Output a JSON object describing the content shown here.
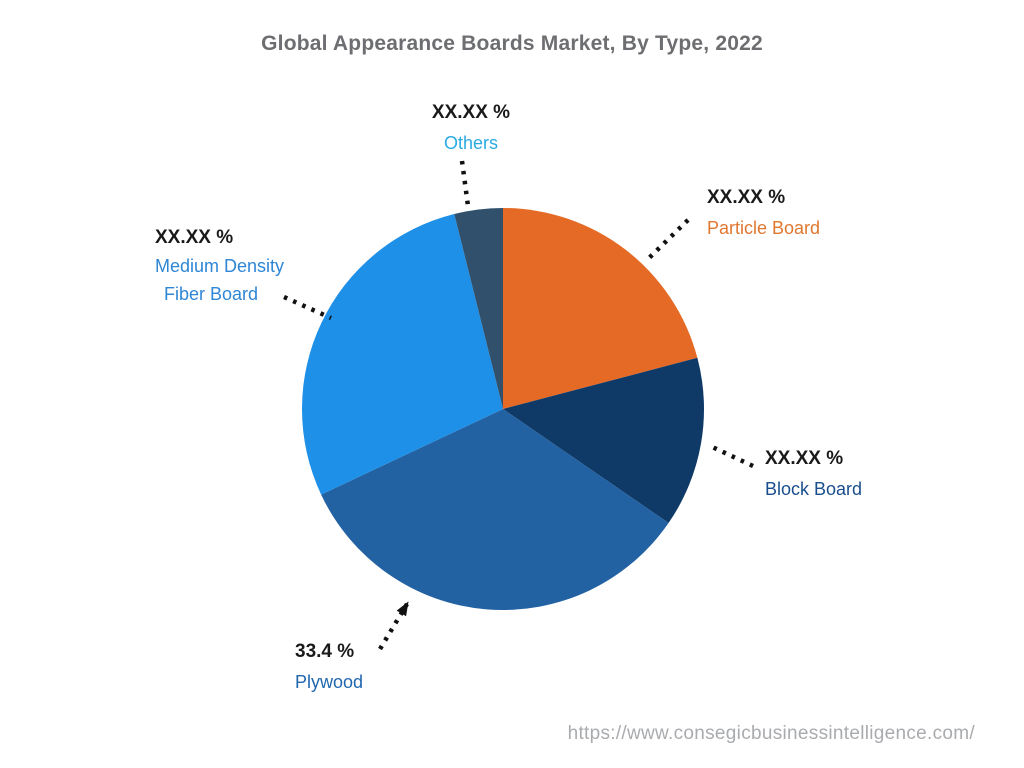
{
  "title": "Global Appearance Boards Market, By Type, 2022",
  "footer_url": "https://www.consegicbusinessintelligence.com/",
  "chart_data": {
    "type": "pie",
    "title": "Global Appearance Boards Market, By Type, 2022",
    "start_angle": "top",
    "direction": "clockwise",
    "note": "Only Plywood shows a numeric share (33.4 %); other slices are masked as XX.XX % in the image. value_pct for masked slices estimated from slice angles.",
    "slices": [
      {
        "label": "Particle Board",
        "display_value": "XX.XX %",
        "value_pct": 20.9,
        "color": "#E56A25",
        "label_color": "#E0772F"
      },
      {
        "label": "Block Board",
        "display_value": "XX.XX %",
        "value_pct": 13.7,
        "color": "#0F3A68",
        "label_color": "#1A4E8D"
      },
      {
        "label": "Plywood",
        "display_value": "33.4 %",
        "value_pct": 33.4,
        "color": "#2262A3",
        "label_color": "#2067AF"
      },
      {
        "label": "Medium Density Fiber Board",
        "display_value": "XX.XX %",
        "value_pct": 28.1,
        "color": "#1E90E8",
        "label_color": "#2E86D5"
      },
      {
        "label": "Others",
        "display_value": "XX.XX %",
        "value_pct": 3.9,
        "color": "#30506C",
        "label_color": "#29ABE2"
      }
    ]
  },
  "callouts": {
    "others": {
      "value": "XX.XX %",
      "label": "Others"
    },
    "particle_board": {
      "value": "XX.XX %",
      "label": "Particle Board"
    },
    "medium_density_fiber_board": {
      "value": "XX.XX %",
      "label_line1": "Medium Density",
      "label_line2": "Fiber Board"
    },
    "block_board": {
      "value": "XX.XX %",
      "label": "Block Board"
    },
    "plywood": {
      "value": "33.4 %",
      "label": "Plywood"
    }
  },
  "colors": {
    "title_text": "#6d6e71",
    "percent_text": "#1a1a1a",
    "footer_text": "#a9abae",
    "leader_lines": "#111111"
  }
}
